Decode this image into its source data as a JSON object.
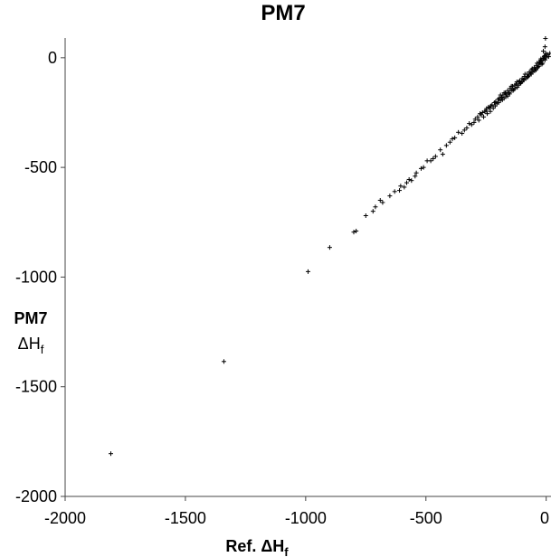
{
  "chart_data": {
    "type": "scatter",
    "title": "PM7",
    "xlabel": "Ref. ΔH",
    "xlabel_subscript": "f",
    "ylabel_line1": "PM7",
    "ylabel_line2": "ΔH",
    "ylabel_subscript": "f",
    "xlim": [
      -2000,
      20
    ],
    "ylim": [
      -2000,
      90
    ],
    "xticks": [
      -2000,
      -1500,
      -1000,
      -500,
      0
    ],
    "yticks": [
      0,
      -500,
      -1000,
      -1500,
      -2000
    ],
    "xtick_labels": [
      "-2000",
      "-1500",
      "-1000",
      "-500",
      "0"
    ],
    "ytick_labels": [
      "0",
      "-500",
      "-1000",
      "-1500",
      "-2000"
    ],
    "grid": false,
    "marker": "plus",
    "color": "#000000",
    "points": [
      [
        -1810,
        -1805
      ],
      [
        -1340,
        -1385
      ],
      [
        -990,
        -975
      ],
      [
        -900,
        -865
      ],
      [
        -800,
        -795
      ],
      [
        -790,
        -790
      ],
      [
        -750,
        -720
      ],
      [
        -720,
        -700
      ],
      [
        -710,
        -680
      ],
      [
        -690,
        -650
      ],
      [
        -680,
        -660
      ],
      [
        -650,
        -630
      ],
      [
        -630,
        -610
      ],
      [
        -610,
        -605
      ],
      [
        -605,
        -585
      ],
      [
        -590,
        -590
      ],
      [
        -580,
        -570
      ],
      [
        -570,
        -555
      ],
      [
        -560,
        -560
      ],
      [
        -545,
        -540
      ],
      [
        -540,
        -525
      ],
      [
        -520,
        -505
      ],
      [
        -510,
        -500
      ],
      [
        -495,
        -470
      ],
      [
        -480,
        -470
      ],
      [
        -470,
        -460
      ],
      [
        -460,
        -450
      ],
      [
        -440,
        -420
      ],
      [
        -430,
        -440
      ],
      [
        -415,
        -400
      ],
      [
        -400,
        -385
      ],
      [
        -390,
        -370
      ],
      [
        -380,
        -365
      ],
      [
        -365,
        -340
      ],
      [
        -350,
        -345
      ],
      [
        -340,
        -330
      ],
      [
        -330,
        -320
      ],
      [
        -320,
        -300
      ],
      [
        -310,
        -305
      ],
      [
        -300,
        -295
      ],
      [
        -295,
        -280
      ],
      [
        -285,
        -270
      ],
      [
        -280,
        -285
      ],
      [
        -270,
        -260
      ],
      [
        -265,
        -250
      ],
      [
        -255,
        -245
      ],
      [
        -250,
        -240
      ],
      [
        -245,
        -255
      ],
      [
        -240,
        -225
      ],
      [
        -235,
        -230
      ],
      [
        -230,
        -220
      ],
      [
        -225,
        -215
      ],
      [
        -220,
        -230
      ],
      [
        -215,
        -205
      ],
      [
        -210,
        -200
      ],
      [
        -205,
        -210
      ],
      [
        -200,
        -190
      ],
      [
        -195,
        -185
      ],
      [
        -190,
        -195
      ],
      [
        -185,
        -180
      ],
      [
        -180,
        -170
      ],
      [
        -175,
        -185
      ],
      [
        -170,
        -160
      ],
      [
        -165,
        -165
      ],
      [
        -160,
        -150
      ],
      [
        -155,
        -160
      ],
      [
        -150,
        -140
      ],
      [
        -145,
        -150
      ],
      [
        -140,
        -130
      ],
      [
        -135,
        -145
      ],
      [
        -130,
        -125
      ],
      [
        -125,
        -120
      ],
      [
        -120,
        -135
      ],
      [
        -115,
        -110
      ],
      [
        -110,
        -105
      ],
      [
        -105,
        -115
      ],
      [
        -100,
        -95
      ],
      [
        -95,
        -100
      ],
      [
        -90,
        -85
      ],
      [
        -85,
        -95
      ],
      [
        -80,
        -75
      ],
      [
        -75,
        -85
      ],
      [
        -70,
        -65
      ],
      [
        -65,
        -70
      ],
      [
        -60,
        -55
      ],
      [
        -55,
        -65
      ],
      [
        -50,
        -45
      ],
      [
        -45,
        -50
      ],
      [
        -40,
        -35
      ],
      [
        -35,
        -45
      ],
      [
        -30,
        -25
      ],
      [
        -25,
        -30
      ],
      [
        -20,
        -15
      ],
      [
        -15,
        -25
      ],
      [
        -10,
        -5
      ],
      [
        -5,
        -10
      ],
      [
        0,
        0
      ],
      [
        5,
        15
      ],
      [
        10,
        5
      ],
      [
        15,
        20
      ],
      [
        -190,
        -170
      ],
      [
        -175,
        -160
      ],
      [
        -160,
        -175
      ],
      [
        -145,
        -130
      ],
      [
        -130,
        -140
      ],
      [
        -115,
        -125
      ],
      [
        -100,
        -110
      ],
      [
        -88,
        -75
      ],
      [
        -72,
        -80
      ],
      [
        -58,
        -50
      ],
      [
        -42,
        -55
      ],
      [
        -28,
        -20
      ],
      [
        -18,
        -30
      ],
      [
        -8,
        5
      ],
      [
        -2,
        20
      ],
      [
        -5,
        50
      ],
      [
        -3,
        88
      ],
      [
        -12,
        30
      ],
      [
        -22,
        -5
      ],
      [
        -38,
        -25
      ],
      [
        -275,
        -255
      ],
      [
        -260,
        -270
      ],
      [
        -248,
        -232
      ],
      [
        -232,
        -245
      ],
      [
        -212,
        -220
      ],
      [
        -198,
        -205
      ],
      [
        -182,
        -192
      ],
      [
        -168,
        -178
      ],
      [
        -152,
        -165
      ],
      [
        -138,
        -150
      ],
      [
        -122,
        -110
      ],
      [
        -108,
        -118
      ],
      [
        -92,
        -102
      ],
      [
        -78,
        -90
      ],
      [
        -62,
        -75
      ],
      [
        -48,
        -60
      ],
      [
        -32,
        -40
      ],
      [
        -24,
        -12
      ],
      [
        -14,
        -2
      ],
      [
        -6,
        10
      ]
    ]
  }
}
